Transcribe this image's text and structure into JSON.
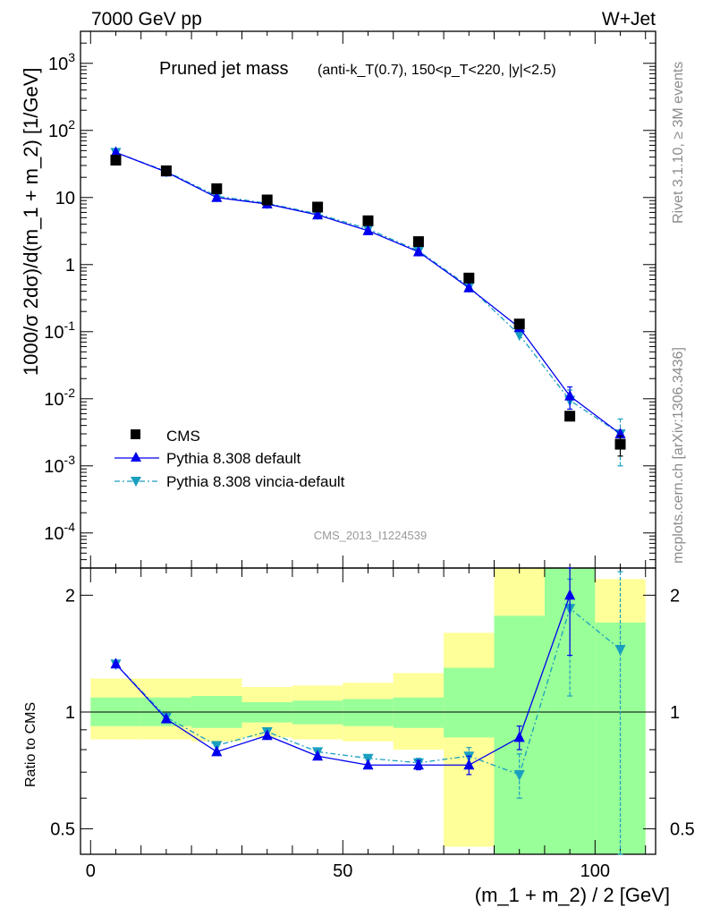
{
  "header": {
    "left_label": "7000 GeV pp",
    "right_label": "W+Jet"
  },
  "plot_title": {
    "main": "Pruned jet mass",
    "cuts": "(anti-k_T(0.7), 150<p_T<220, |y|<2.5)"
  },
  "side_labels": {
    "rivet": "Rivet 3.1.10, ≥ 3M events",
    "mcplots": "mcplots.cern.ch [arXiv:1306.3436]"
  },
  "watermark": "CMS_2013_I1224539",
  "legend": {
    "items": [
      {
        "label": "CMS",
        "color": "#000000",
        "marker": "square"
      },
      {
        "label": "Pythia 8.308 default",
        "color": "#0000ee",
        "marker": "triangle-up"
      },
      {
        "label": "Pythia 8.308 vincia-default",
        "color": "#1a9fc0",
        "marker": "triangle-down"
      }
    ]
  },
  "chart_data": [
    {
      "type": "scatter",
      "panel": "main",
      "ylabel": "1000/σ 2dσ)/d(m_1 + m_2) [1/GeV]",
      "yscale": "log",
      "ylim": [
        3e-05,
        3000
      ],
      "xlim": [
        -2,
        112
      ],
      "y_ticks": [
        "10^-4",
        "10^-3",
        "10^-2",
        "10^-1",
        "1",
        "10",
        "10^2",
        "10^3"
      ],
      "x": [
        5,
        15,
        25,
        35,
        45,
        55,
        65,
        75,
        85,
        95,
        105
      ],
      "series": [
        {
          "name": "CMS",
          "values": [
            36,
            25,
            13.5,
            9.2,
            7.2,
            4.5,
            2.2,
            0.63,
            0.13,
            0.0055,
            0.0021
          ],
          "err_low": [
            0,
            0,
            0,
            0,
            0,
            0,
            0,
            0,
            0,
            0,
            0.0007
          ],
          "err_high": [
            0,
            0,
            0,
            0,
            0,
            0,
            0,
            0,
            0,
            0,
            0.0007
          ]
        },
        {
          "name": "Pythia 8.308 default",
          "values": [
            47,
            24,
            10,
            8,
            5.5,
            3.2,
            1.55,
            0.45,
            0.115,
            0.011,
            0.003
          ],
          "err_low": [
            0,
            0,
            0,
            0,
            0,
            0,
            0,
            0,
            0,
            0.004,
            0
          ],
          "err_high": [
            0,
            0,
            0,
            0,
            0,
            0,
            0,
            0,
            0,
            0.004,
            0
          ]
        },
        {
          "name": "Pythia 8.308 vincia-default",
          "values": [
            47,
            24.5,
            10.5,
            8.2,
            5.7,
            3.4,
            1.6,
            0.47,
            0.09,
            0.0095,
            0.003
          ],
          "err_low": [
            0,
            0,
            0,
            0,
            0,
            0,
            0,
            0,
            0,
            0.003,
            0.002
          ],
          "err_high": [
            0,
            0,
            0,
            0,
            0,
            0,
            0,
            0,
            0,
            0.004,
            0.002
          ]
        }
      ]
    },
    {
      "type": "line",
      "panel": "ratio",
      "ylabel": "Ratio to CMS",
      "xlabel": "(m_1 + m_2) / 2 [GeV]",
      "yscale": "log",
      "ylim": [
        0.43,
        2.35
      ],
      "xlim": [
        -2,
        112
      ],
      "y_ticks": [
        "0.5",
        "1",
        "2"
      ],
      "x_ticks": [
        "0",
        "50",
        "100"
      ],
      "bands": {
        "bins": [
          [
            0,
            10
          ],
          [
            10,
            20
          ],
          [
            20,
            30
          ],
          [
            30,
            40
          ],
          [
            40,
            50
          ],
          [
            50,
            60
          ],
          [
            60,
            70
          ],
          [
            70,
            80
          ],
          [
            80,
            90
          ],
          [
            90,
            100
          ],
          [
            100,
            110
          ]
        ],
        "stat_low": [
          0.92,
          0.92,
          0.91,
          0.94,
          0.93,
          0.92,
          0.91,
          0.86,
          0.43,
          0.43,
          0.43
        ],
        "stat_high": [
          1.09,
          1.09,
          1.1,
          1.06,
          1.07,
          1.08,
          1.09,
          1.3,
          1.77,
          2.35,
          1.7
        ],
        "total_low": [
          0.85,
          0.85,
          0.84,
          0.86,
          0.85,
          0.84,
          0.8,
          0.45,
          0.43,
          0.43,
          0.43
        ],
        "total_high": [
          1.22,
          1.22,
          1.22,
          1.16,
          1.17,
          1.19,
          1.26,
          1.6,
          2.35,
          2.35,
          2.2
        ]
      },
      "series": [
        {
          "name": "Pythia 8.308 default",
          "values": [
            1.33,
            0.96,
            0.79,
            0.87,
            0.77,
            0.73,
            0.73,
            0.73,
            0.86,
            2.0,
            null
          ],
          "err_low": [
            0,
            0,
            0,
            0,
            0,
            0,
            0.02,
            0.04,
            0.06,
            0.6,
            0
          ],
          "err_high": [
            0,
            0,
            0,
            0,
            0,
            0,
            0.02,
            0.04,
            0.06,
            0.6,
            0
          ]
        },
        {
          "name": "Pythia 8.308 vincia-default",
          "values": [
            1.33,
            0.97,
            0.82,
            0.89,
            0.79,
            0.76,
            0.74,
            0.77,
            0.69,
            1.85,
            1.45
          ],
          "err_low": [
            0,
            0,
            0,
            0,
            0,
            0,
            0.02,
            0.04,
            0.09,
            0.75,
            1.05
          ],
          "err_high": [
            0,
            0,
            0,
            0,
            0,
            0,
            0.02,
            0.04,
            0.09,
            0.35,
            0.85
          ]
        }
      ]
    }
  ]
}
